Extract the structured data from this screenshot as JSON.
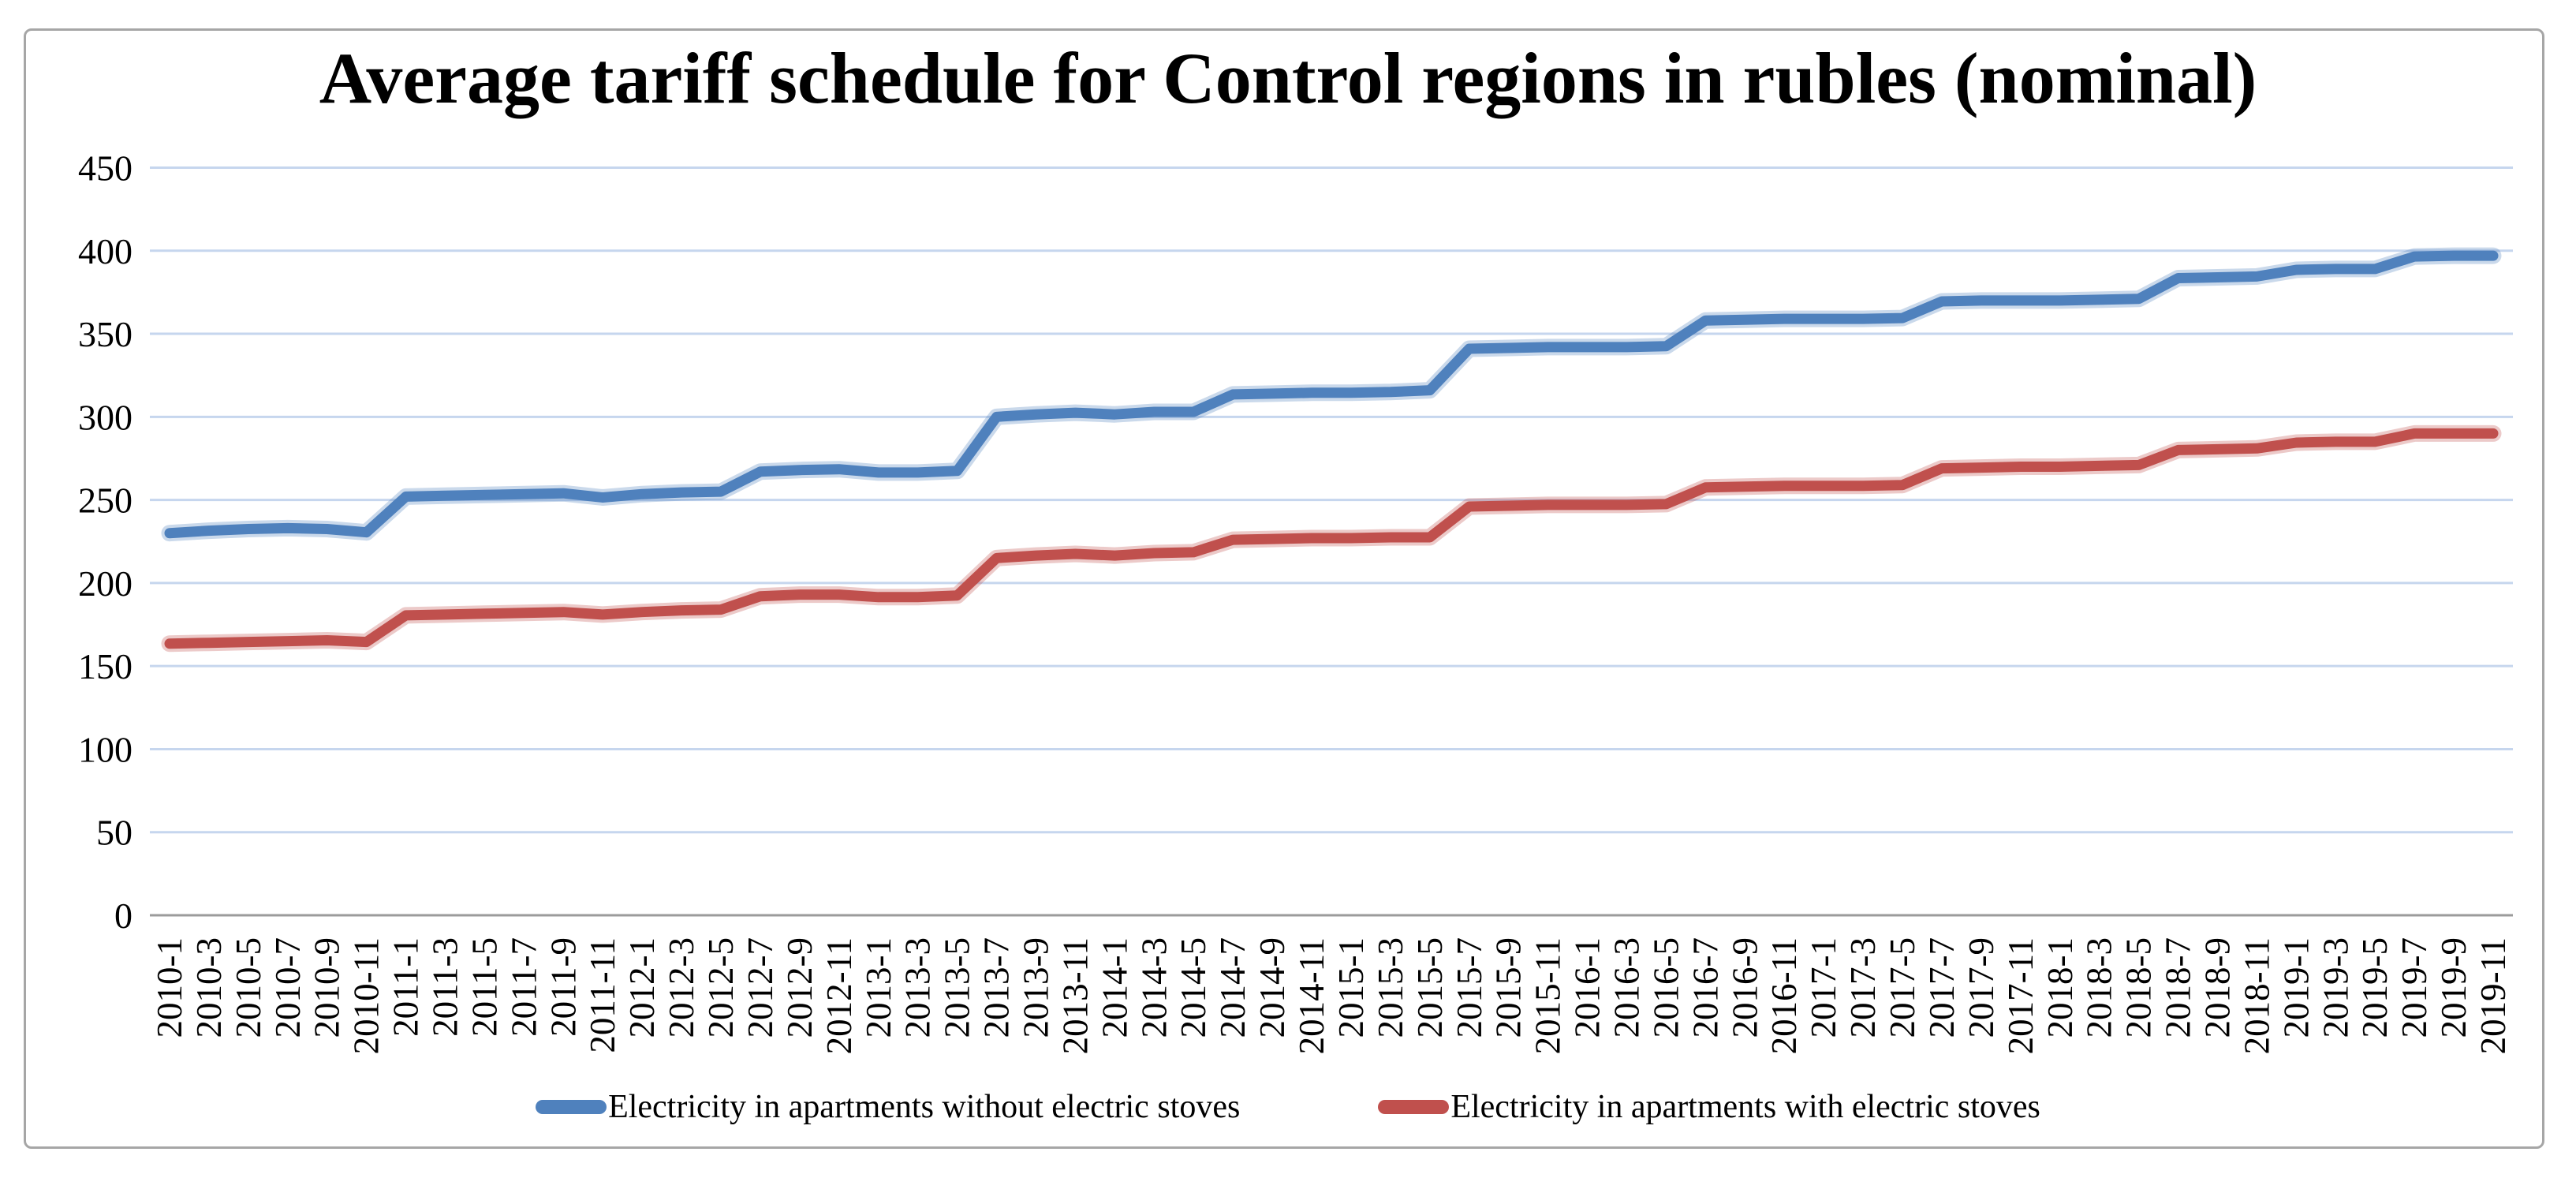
{
  "page": {
    "background": "#ffffff",
    "frame_color": "#a6a6a6"
  },
  "chart_data": {
    "type": "line",
    "title": "Average tariff schedule for Control regions in rubles (nominal)",
    "xlabel": "",
    "ylabel": "",
    "ylim": [
      0,
      450
    ],
    "y_ticks": [
      0,
      50,
      100,
      150,
      200,
      250,
      300,
      350,
      400,
      450
    ],
    "grid": "horizontal",
    "gridline_color": "#c6d6ee",
    "axis_color": "#9b9b9b",
    "legend_position": "bottom",
    "categories": [
      "2010-1",
      "2010-3",
      "2010-5",
      "2010-7",
      "2010-9",
      "2010-11",
      "2011-1",
      "2011-3",
      "2011-5",
      "2011-7",
      "2011-9",
      "2011-11",
      "2012-1",
      "2012-3",
      "2012-5",
      "2012-7",
      "2012-9",
      "2012-11",
      "2013-1",
      "2013-3",
      "2013-5",
      "2013-7",
      "2013-9",
      "2013-11",
      "2014-1",
      "2014-3",
      "2014-5",
      "2014-7",
      "2014-9",
      "2014-11",
      "2015-1",
      "2015-3",
      "2015-5",
      "2015-7",
      "2015-9",
      "2015-11",
      "2016-1",
      "2016-3",
      "2016-5",
      "2016-7",
      "2016-9",
      "2016-11",
      "2017-1",
      "2017-3",
      "2017-5",
      "2017-7",
      "2017-9",
      "2017-11",
      "2018-1",
      "2018-3",
      "2018-5",
      "2018-7",
      "2018-9",
      "2018-11",
      "2019-1",
      "2019-3",
      "2019-5",
      "2019-7",
      "2019-9",
      "2019-11"
    ],
    "series": [
      {
        "name": "Electricity in apartments without electric stoves",
        "color": "#4f81bd",
        "values": [
          230,
          231.5,
          232.5,
          233,
          232.5,
          230.5,
          252,
          252.5,
          253,
          253.5,
          254,
          251.5,
          253.5,
          254.5,
          255,
          267,
          268,
          268.5,
          266.5,
          266.5,
          267.5,
          300,
          301.5,
          302.5,
          301.5,
          303,
          303,
          313.5,
          314,
          314.5,
          314.5,
          315,
          316,
          341,
          341.5,
          342,
          342,
          342,
          342.5,
          358,
          358.5,
          359,
          359,
          359,
          359.5,
          369.5,
          370,
          370,
          370,
          370.5,
          371,
          383.5,
          384,
          384.5,
          388.5,
          389,
          389,
          396.5,
          397,
          397
        ]
      },
      {
        "name": "Electricity in apartments with electric stoves",
        "color": "#c0504d",
        "values": [
          163.5,
          164,
          164.5,
          165,
          165.5,
          164.5,
          180.5,
          181,
          181.5,
          182,
          182.5,
          181,
          182.5,
          183.5,
          184,
          192,
          193,
          193,
          191.5,
          191.5,
          192.5,
          215,
          216.5,
          217.5,
          216.5,
          218,
          218.5,
          226,
          226.5,
          227,
          227,
          227.5,
          227.5,
          246,
          246.5,
          247,
          247,
          247,
          247.5,
          257.5,
          258,
          258.5,
          258.5,
          258.5,
          259,
          269,
          269.5,
          270,
          270,
          270.5,
          271,
          280,
          280.5,
          281,
          284.5,
          285,
          285,
          290,
          290,
          290
        ]
      }
    ]
  }
}
